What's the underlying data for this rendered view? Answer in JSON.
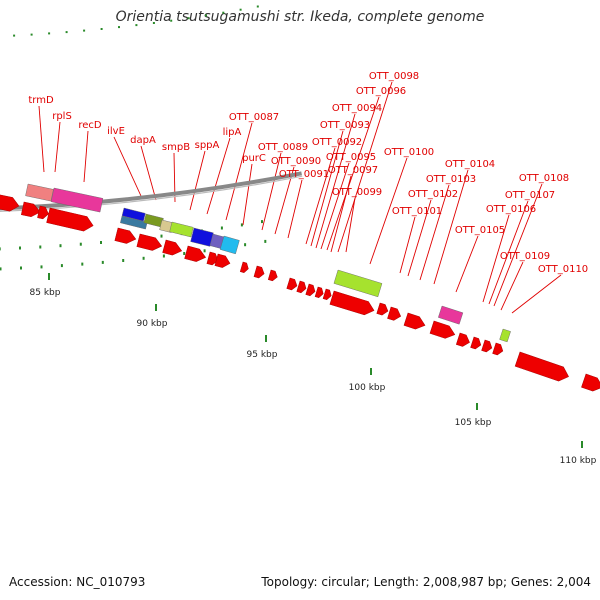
{
  "title": "Orientia tsutsugamushi str. Ikeda, complete genome",
  "footer": {
    "accession": "Accession: NC_010793",
    "topology": "Topology: circular; Length: 2,008,987 bp; Genes: 2,004"
  },
  "colors": {
    "cds_red": "#ee0000",
    "backbone": "#888888",
    "tick_green": "#2a8a2a",
    "label_red": "#e00000",
    "pink": "#e8379b",
    "salmon": "#f08080",
    "lime": "#a6e22e",
    "blue": "#1010dd",
    "cyan": "#22bbee",
    "olive": "#7a9a20",
    "tan": "#d8c890"
  },
  "scale": {
    "ticks": [
      "85 kbp",
      "90 kbp",
      "95 kbp",
      "100 kbp",
      "105 kbp",
      "110 kbp"
    ]
  },
  "gene_labels": [
    "trmD",
    "rplS",
    "recD",
    "ilvE",
    "dapA",
    "smpB",
    "sppA",
    "lipA",
    "OTT_0087",
    "purC",
    "OTT_0089",
    "OTT_0090",
    "OTT_0091",
    "OTT_0092",
    "OTT_0093",
    "OTT_0094",
    "OTT_0095",
    "OTT_0096",
    "OTT_0097",
    "OTT_0098",
    "OTT_0099",
    "OTT_0100",
    "OTT_0101",
    "OTT_0102",
    "OTT_0103",
    "OTT_0104",
    "OTT_0105",
    "OTT_0106",
    "OTT_0107",
    "OTT_0108",
    "OTT_0109",
    "OTT_0110"
  ]
}
